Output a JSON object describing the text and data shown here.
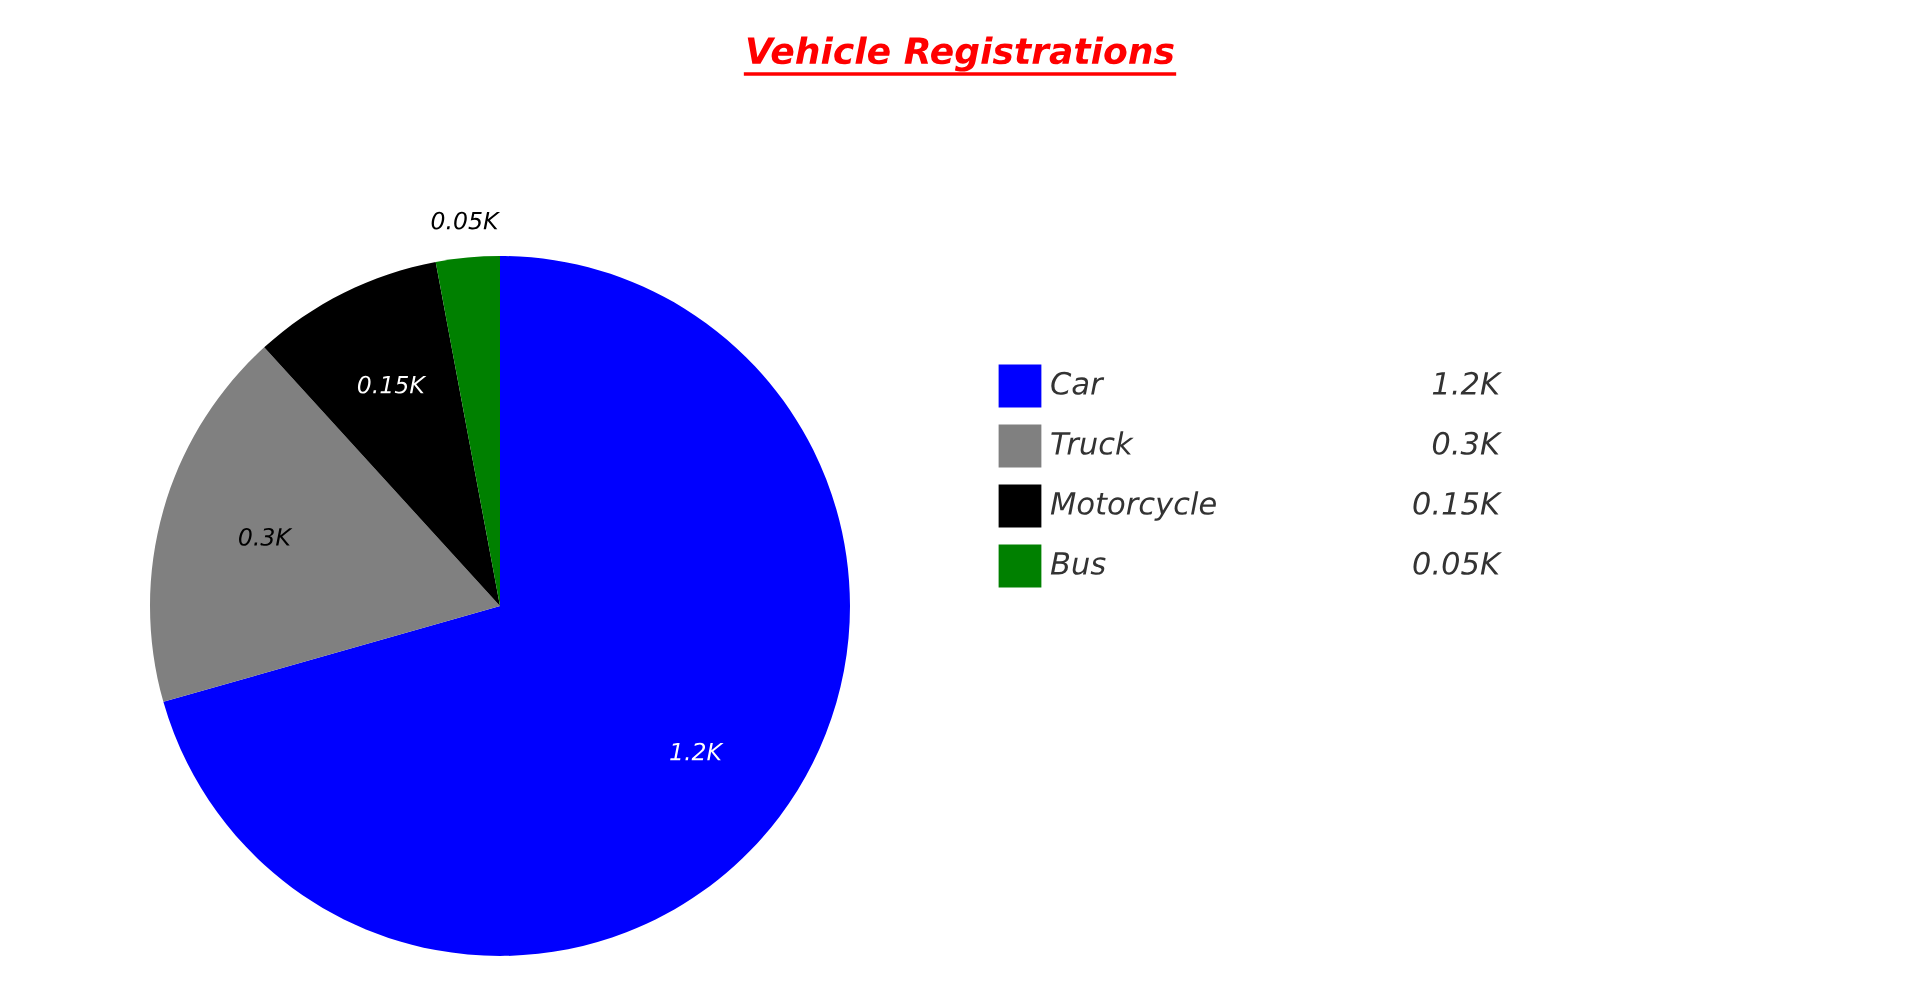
{
  "chart_data": {
    "type": "pie",
    "title": "Vehicle Registrations",
    "categories": [
      "Car",
      "Truck",
      "Motorcycle",
      "Bus"
    ],
    "values": [
      1200,
      300,
      150,
      50
    ],
    "colors": [
      "#0000ff",
      "#808080",
      "#000000",
      "#008000"
    ],
    "value_labels": [
      "1.2K",
      "0.3K",
      "0.15K",
      "0.05K"
    ],
    "legend": "right"
  }
}
